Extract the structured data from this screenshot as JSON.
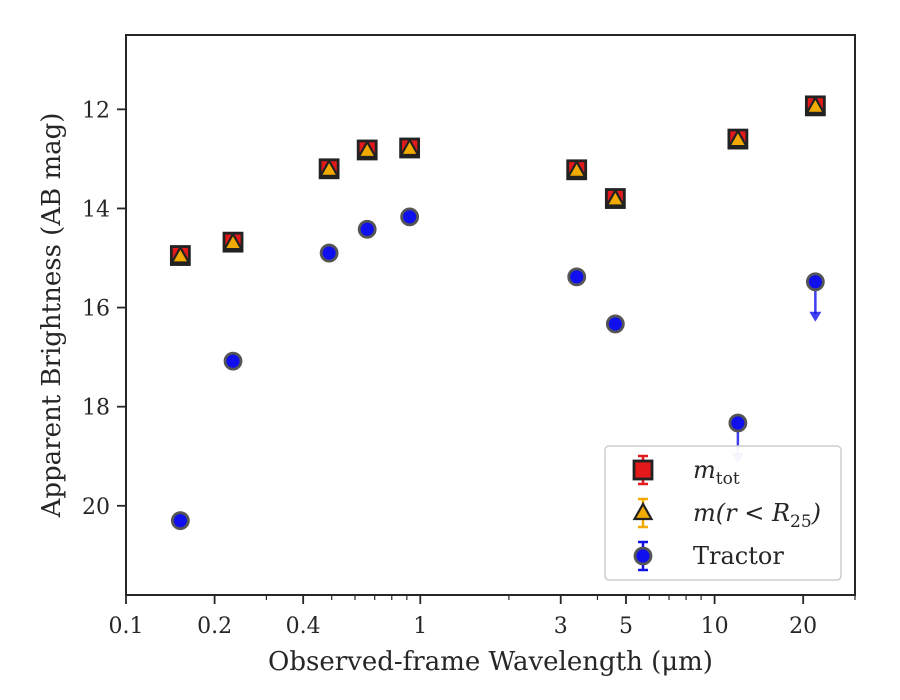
{
  "chart_data": {
    "type": "scatter",
    "xlabel": "Observed-frame Wavelength (μm)",
    "ylabel": "Apparent Brightness (AB mag)",
    "x_scale": "log",
    "xlim": [
      0.1,
      30
    ],
    "ylim": [
      21.8,
      10.5
    ],
    "y_inverted": true,
    "x_ticks": [
      {
        "value": 0.1,
        "label": "0.1"
      },
      {
        "value": 0.2,
        "label": "0.2"
      },
      {
        "value": 0.4,
        "label": "0.4"
      },
      {
        "value": 1,
        "label": "1"
      },
      {
        "value": 3,
        "label": "3"
      },
      {
        "value": 5,
        "label": "5"
      },
      {
        "value": 10,
        "label": "10"
      },
      {
        "value": 20,
        "label": "20"
      }
    ],
    "x_minor_ticks": [
      0.3,
      0.5,
      0.6,
      0.7,
      0.8,
      0.9,
      2,
      4,
      6,
      7,
      8,
      9,
      30
    ],
    "y_ticks": [
      {
        "value": 12,
        "label": "12"
      },
      {
        "value": 14,
        "label": "14"
      },
      {
        "value": 16,
        "label": "16"
      },
      {
        "value": 18,
        "label": "18"
      },
      {
        "value": 20,
        "label": "20"
      }
    ],
    "grid": false,
    "legend_position": "lower-right",
    "series": [
      {
        "name": "m_tot",
        "legend_main": "m",
        "legend_sub": "tot",
        "marker": "square",
        "color": "#e31a1c",
        "edge_color": "#222222",
        "x": [
          0.153,
          0.231,
          0.49,
          0.66,
          0.92,
          3.4,
          4.6,
          12.0,
          22.0
        ],
        "y": [
          14.95,
          14.68,
          13.2,
          12.82,
          12.78,
          13.22,
          13.8,
          12.6,
          11.93
        ]
      },
      {
        "name": "m(r < R25)",
        "legend_main": "m(r < R",
        "legend_sub": "25",
        "legend_tail": ")",
        "marker": "triangle",
        "color": "#f2a900",
        "edge_color": "#222222",
        "x": [
          0.153,
          0.231,
          0.49,
          0.66,
          0.92,
          3.4,
          4.6,
          12.0,
          22.0
        ],
        "y": [
          14.97,
          14.7,
          13.22,
          12.84,
          12.8,
          13.24,
          13.82,
          12.62,
          11.95
        ]
      },
      {
        "name": "Tractor",
        "legend_main": "Tractor",
        "marker": "circle",
        "color": "#1010ee",
        "edge_color": "#555555",
        "x": [
          0.153,
          0.231,
          0.49,
          0.66,
          0.92,
          3.4,
          4.6,
          12.0,
          22.0
        ],
        "y": [
          20.3,
          17.08,
          14.9,
          14.42,
          14.17,
          15.38,
          16.33,
          18.33,
          15.48
        ],
        "upper_limit": [
          false,
          false,
          false,
          false,
          false,
          false,
          false,
          true,
          true
        ]
      }
    ]
  }
}
